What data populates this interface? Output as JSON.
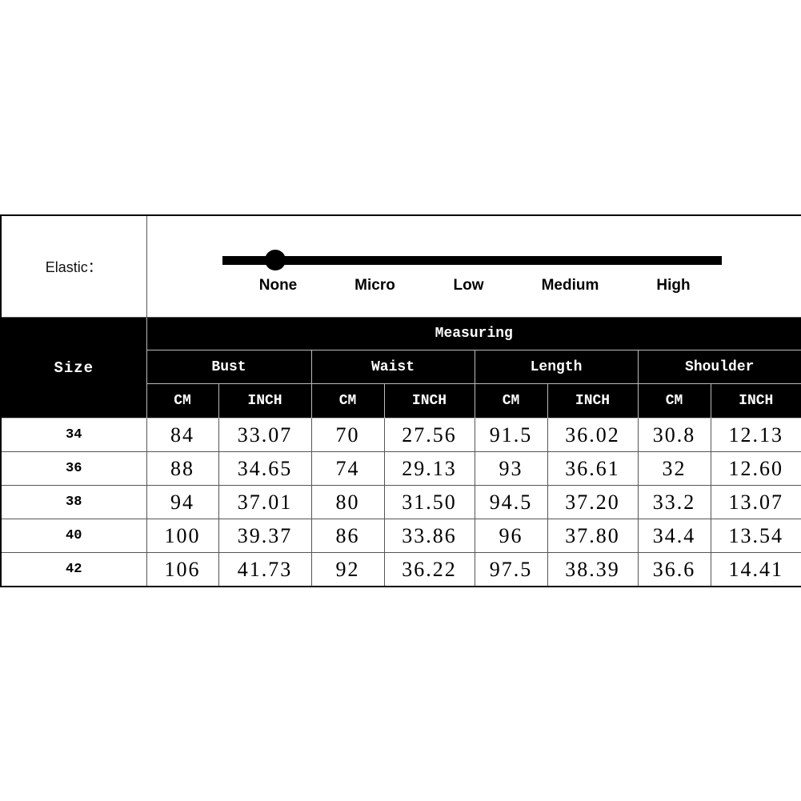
{
  "elastic": {
    "label": "Elastic：",
    "levels": [
      "None",
      "Micro",
      "Low",
      "Medium",
      "High"
    ],
    "selected_level": "None",
    "selected_index": 0
  },
  "header": {
    "size": "Size",
    "measuring": "Measuring",
    "groups": [
      "Bust",
      "Waist",
      "Length",
      "Shoulder"
    ],
    "units": [
      "CM",
      "INCH",
      "CM",
      "INCH",
      "CM",
      "INCH",
      "CM",
      "INCH"
    ]
  },
  "rows": [
    {
      "size": "34",
      "values": [
        "84",
        "33.07",
        "70",
        "27.56",
        "91.5",
        "36.02",
        "30.8",
        "12.13"
      ]
    },
    {
      "size": "36",
      "values": [
        "88",
        "34.65",
        "74",
        "29.13",
        "93",
        "36.61",
        "32",
        "12.60"
      ]
    },
    {
      "size": "38",
      "values": [
        "94",
        "37.01",
        "80",
        "31.50",
        "94.5",
        "37.20",
        "33.2",
        "13.07"
      ]
    },
    {
      "size": "40",
      "values": [
        "100",
        "39.37",
        "86",
        "33.86",
        "96",
        "37.80",
        "34.4",
        "13.54"
      ]
    },
    {
      "size": "42",
      "values": [
        "106",
        "41.73",
        "92",
        "36.22",
        "97.5",
        "38.39",
        "36.6",
        "14.41"
      ]
    }
  ]
}
